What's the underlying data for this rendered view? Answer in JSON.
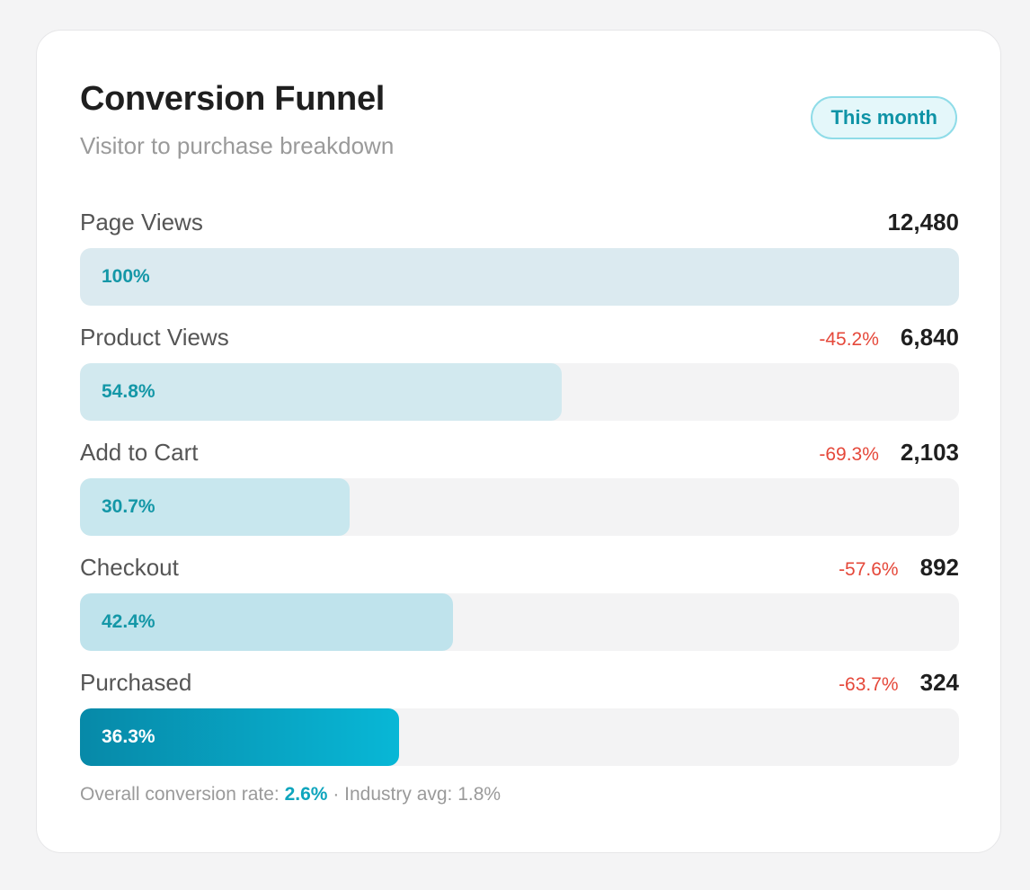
{
  "header": {
    "title": "Conversion Funnel",
    "subtitle": "Visitor to purchase breakdown",
    "period": "This month"
  },
  "chart_data": {
    "type": "bar",
    "orientation": "horizontal",
    "title": "Conversion Funnel",
    "subtitle": "Visitor to purchase breakdown",
    "categories": [
      "Page Views",
      "Product Views",
      "Add to Cart",
      "Checkout",
      "Purchased"
    ],
    "values": [
      12480,
      6840,
      2103,
      892,
      324
    ],
    "xlim": [
      0,
      12480
    ],
    "grid": false,
    "legend": "none",
    "stages": [
      {
        "label": "Page Views",
        "count": "12,480",
        "change": "",
        "percent": "100%",
        "width_fraction": 1.0
      },
      {
        "label": "Product Views",
        "count": "6,840",
        "change": "-45.2%",
        "percent": "54.8%",
        "width_fraction": 0.548
      },
      {
        "label": "Add to Cart",
        "count": "2,103",
        "change": "-69.3%",
        "percent": "30.7%",
        "width_fraction": 0.307
      },
      {
        "label": "Checkout",
        "count": "892",
        "change": "-57.6%",
        "percent": "42.4%",
        "width_fraction": 0.424
      },
      {
        "label": "Purchased",
        "count": "324",
        "change": "-63.7%",
        "percent": "36.3%",
        "width_fraction": 0.363
      }
    ]
  },
  "footer": {
    "rate_label": "Overall conversion rate: ",
    "rate_value": "2.6%",
    "separator": " · ",
    "industry_label": "Industry avg: 1.8%"
  },
  "colors": {
    "accent": "#0ea5bd",
    "change_negative": "#e5483a",
    "track": "#f3f3f4",
    "stage_fills": [
      "#dbeaf0",
      "#d2e9ef",
      "#c8e7ee",
      "#bfe3ec"
    ],
    "final_gradient": [
      "#0789a8",
      "#08b7d6"
    ]
  }
}
